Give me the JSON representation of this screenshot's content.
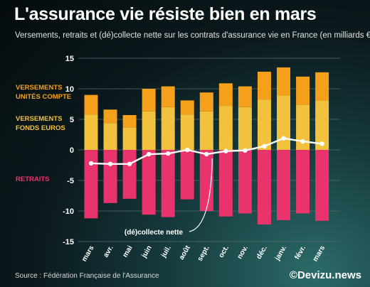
{
  "header": {
    "title": "L'assurance vie résiste bien en mars",
    "subtitle": "Versements, retraits et (dé)collecte nette sur les contrats d'assurance vie en France (en milliards €)"
  },
  "footer": {
    "source": "Source : Fédération Française de l'Assurance",
    "brand": "©Devizu.news"
  },
  "colors": {
    "uc": "#f5a01a",
    "euros": "#f2c23f",
    "retraits": "#e8336d",
    "collecte": "#ffffff",
    "grid": "#5a6a6c"
  },
  "chart_data": {
    "type": "bar",
    "stacked": true,
    "categories": [
      "mars",
      "avr.",
      "mai",
      "juin",
      "juil.",
      "août",
      "sept.",
      "oct.",
      "nov.",
      "déc.",
      "janv.",
      "févr.",
      "mars"
    ],
    "series": [
      {
        "name": "VERSEMENTS FONDS EUROS",
        "values": [
          5.8,
          4.4,
          3.7,
          6.3,
          7.0,
          5.8,
          6.3,
          7.2,
          7.0,
          8.2,
          8.9,
          7.4,
          8.1
        ]
      },
      {
        "name": "VERSEMENTS UNITÉS COMPTE",
        "values": [
          3.2,
          2.2,
          2.0,
          3.7,
          3.4,
          2.3,
          3.1,
          3.7,
          3.4,
          4.6,
          4.6,
          4.6,
          4.6
        ]
      },
      {
        "name": "RETRAITS",
        "values": [
          -11.2,
          -8.7,
          -8.0,
          -10.6,
          -11.0,
          -8.1,
          -10.0,
          -10.9,
          -10.4,
          -12.2,
          -11.5,
          -10.4,
          -11.6
        ]
      }
    ],
    "line": {
      "name": "(dé)collecte nette",
      "values": [
        -2.2,
        -2.3,
        -2.3,
        -0.7,
        -0.6,
        0.0,
        -0.7,
        -0.2,
        -0.1,
        0.6,
        1.9,
        1.4,
        1.0
      ]
    },
    "ylim": [
      -15,
      15
    ],
    "yticks": [
      15,
      10,
      5,
      0,
      -5,
      -10,
      -15
    ],
    "grid": true,
    "legend_labels": [
      {
        "lines": [
          "VERSEMENTS",
          "UNITÉS COMPTE"
        ],
        "color": "#f5a01a"
      },
      {
        "lines": [
          "VERSEMENTS",
          "FONDS EUROS"
        ],
        "color": "#f2c23f"
      },
      {
        "lines": [
          "RETRAITS"
        ],
        "color": "#e8336d"
      }
    ],
    "annotation": "(dé)collecte nette"
  }
}
